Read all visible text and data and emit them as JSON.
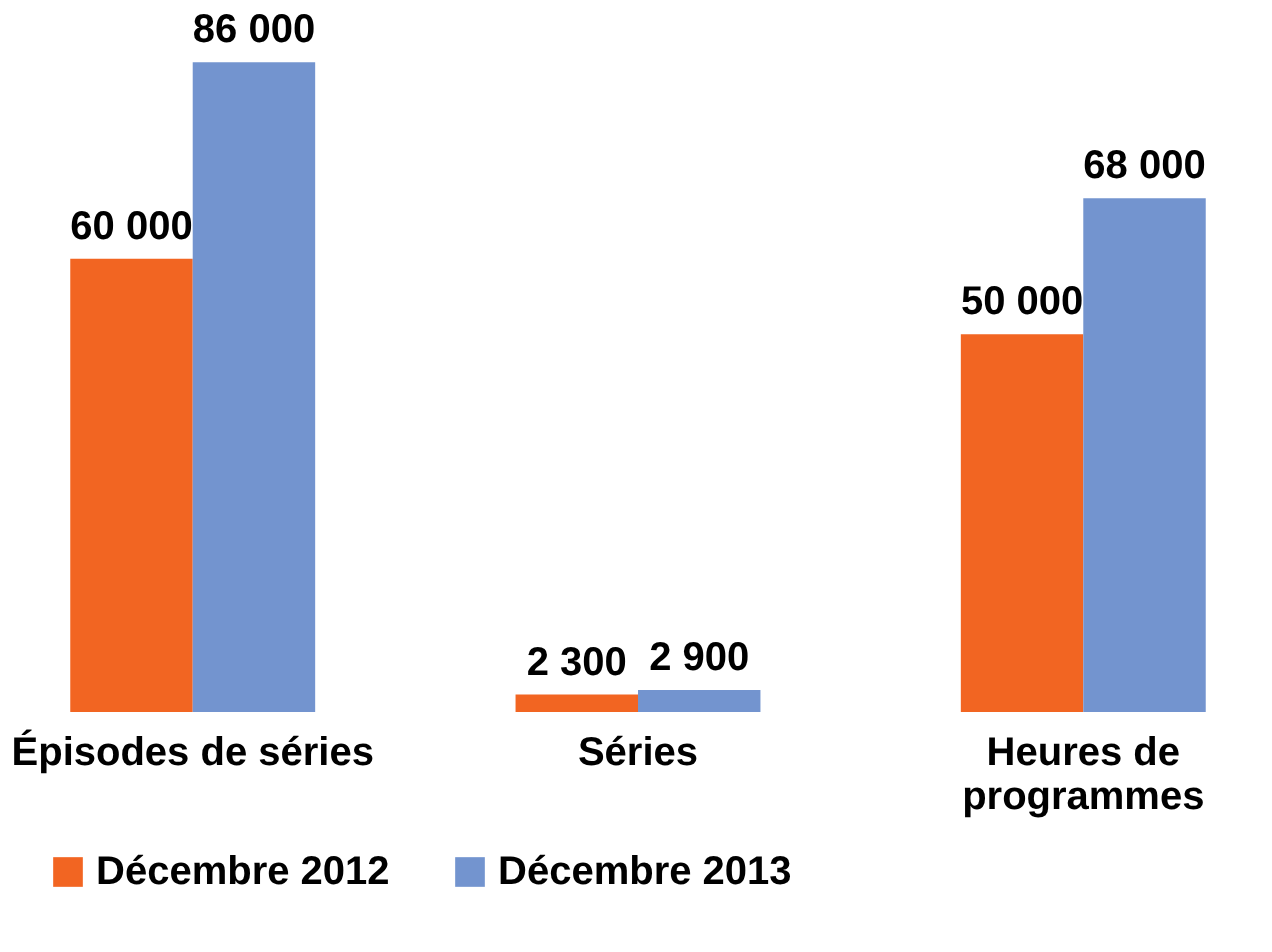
{
  "chart_data": {
    "type": "bar",
    "categories": [
      "Épisodes de séries",
      "Séries",
      "Heures de\nprogrammes"
    ],
    "series": [
      {
        "name": "Décembre 2012",
        "color": "#f26522",
        "values": [
          60000,
          2300,
          50000
        ],
        "value_labels": [
          "60 000",
          "2 300",
          "50 000"
        ]
      },
      {
        "name": "Décembre 2013",
        "color": "#7394cf",
        "values": [
          86000,
          2900,
          68000
        ],
        "value_labels": [
          "86 000",
          "2 900",
          "68 000"
        ]
      }
    ],
    "legend": "bottom",
    "grid": false
  }
}
